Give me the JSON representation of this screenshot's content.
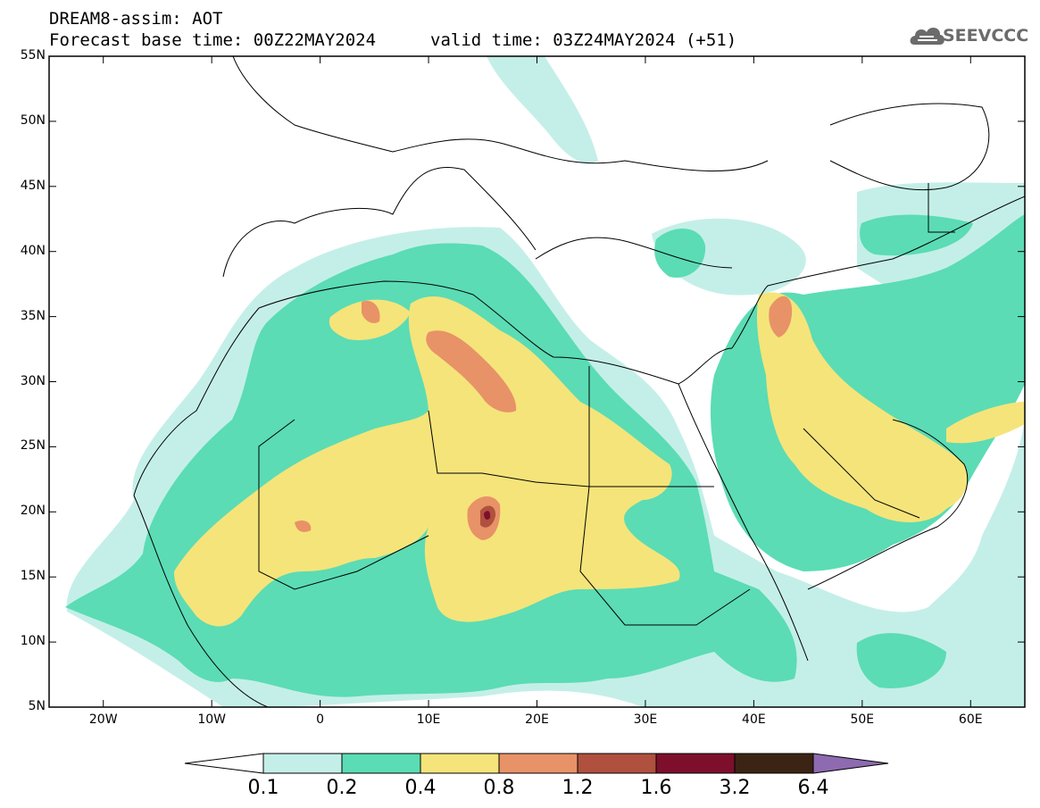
{
  "header": {
    "line1": "DREAM8-assim: AOT",
    "line2": "Forecast base time: 00Z22MAY2024",
    "line3": "valid time: 03Z24MAY2024 (+51)"
  },
  "logo": {
    "text": "SEEVCCC",
    "icon": "cloud-logo-icon",
    "color": "#6b6b6b"
  },
  "map": {
    "lon_range": [
      -25,
      65
    ],
    "lat_range": [
      5,
      55
    ],
    "lat_ticks": [
      {
        "lat": 55,
        "label": "55N"
      },
      {
        "lat": 50,
        "label": "50N"
      },
      {
        "lat": 45,
        "label": "45N"
      },
      {
        "lat": 40,
        "label": "40N"
      },
      {
        "lat": 35,
        "label": "35N"
      },
      {
        "lat": 30,
        "label": "30N"
      },
      {
        "lat": 25,
        "label": "25N"
      },
      {
        "lat": 20,
        "label": "20N"
      },
      {
        "lat": 15,
        "label": "15N"
      },
      {
        "lat": 10,
        "label": "10N"
      },
      {
        "lat": 5,
        "label": "5N"
      }
    ],
    "lon_ticks": [
      {
        "lon": -20,
        "label": "20W"
      },
      {
        "lon": -10,
        "label": "10W"
      },
      {
        "lon": 0,
        "label": "0"
      },
      {
        "lon": 10,
        "label": "10E"
      },
      {
        "lon": 20,
        "label": "20E"
      },
      {
        "lon": 30,
        "label": "30E"
      },
      {
        "lon": 40,
        "label": "40E"
      },
      {
        "lon": 50,
        "label": "50E"
      },
      {
        "lon": 60,
        "label": "60E"
      }
    ]
  },
  "colorbar": {
    "colors": [
      "#c4efe8",
      "#5bdcb4",
      "#f5e47a",
      "#e89268",
      "#b0503e",
      "#7d0f2c",
      "#3b2414"
    ],
    "over_color": "#8e6ab0",
    "under_color": "#ffffff",
    "labels": [
      "0.1",
      "0.2",
      "0.4",
      "0.8",
      "1.2",
      "1.6",
      "3.2",
      "6.4"
    ]
  }
}
